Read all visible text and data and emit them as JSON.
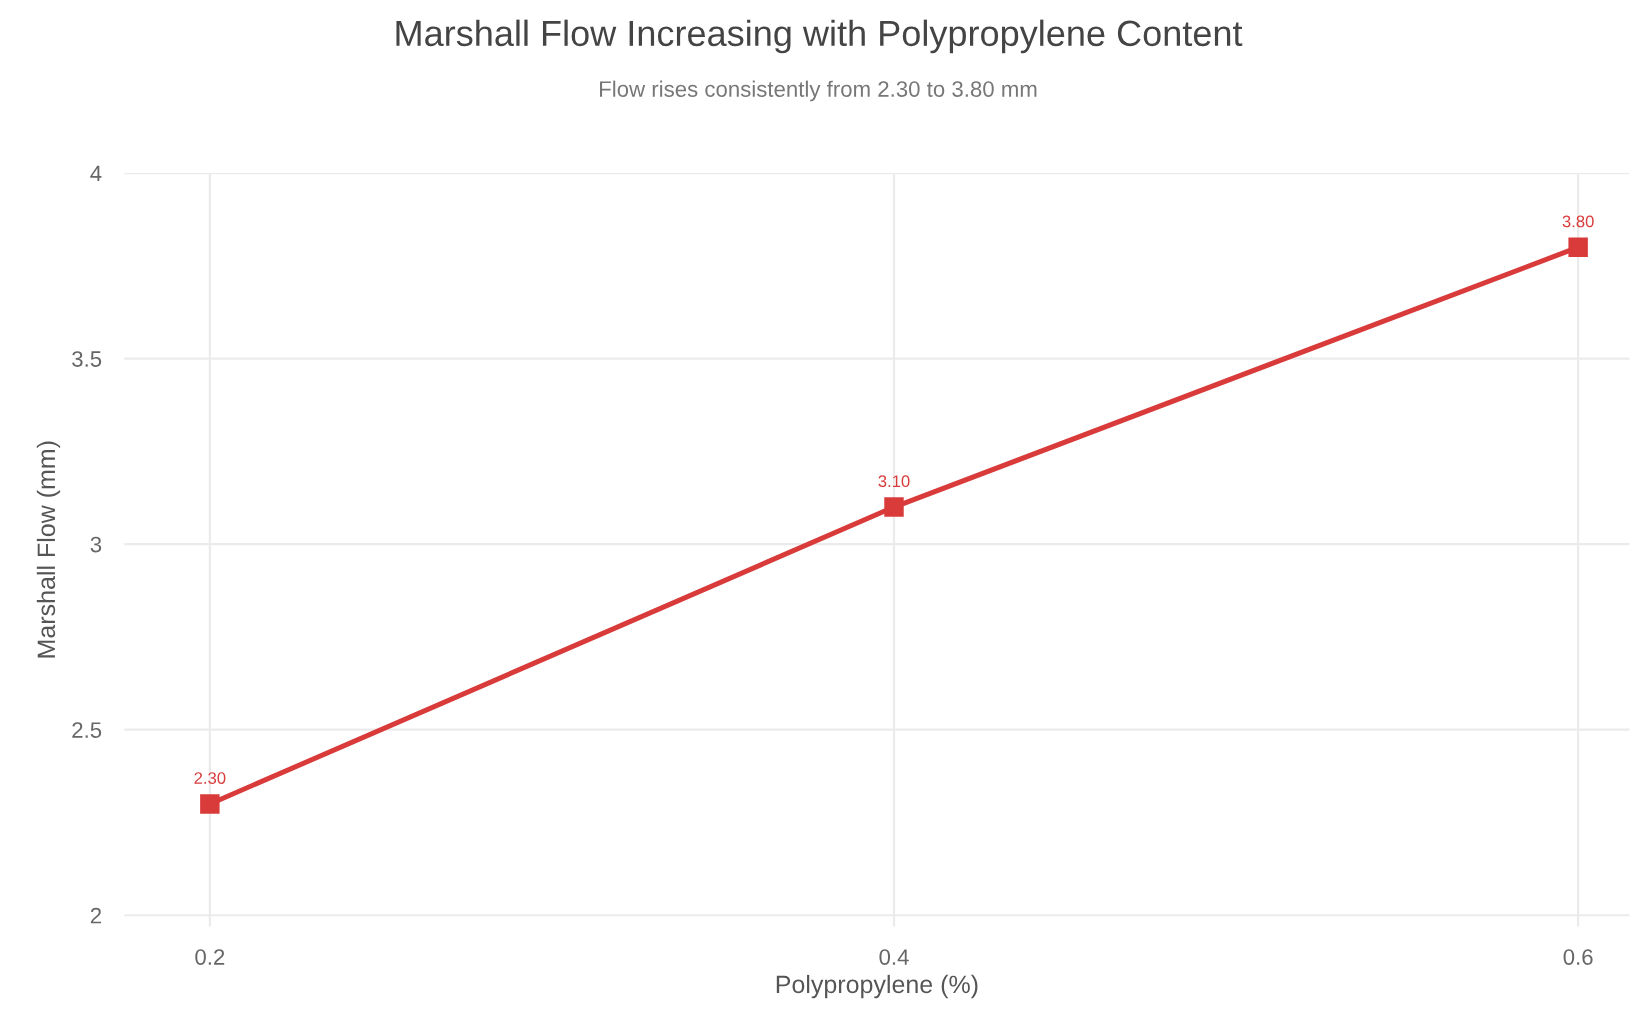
{
  "chart_data": {
    "type": "line",
    "title": "Marshall Flow Increasing with Polypropylene Content",
    "subtitle": "Flow rises consistently from 2.30 to 3.80 mm",
    "xlabel": "Polypropylene (%)",
    "ylabel": "Marshall Flow (mm)",
    "x": [
      0.2,
      0.4,
      0.6
    ],
    "series": [
      {
        "color": "#d93b3b",
        "values": [
          2.3,
          3.1,
          3.8
        ],
        "value_labels": [
          "2.30",
          "3.10",
          "3.80"
        ]
      }
    ],
    "xlim": [
      0.175,
      0.615
    ],
    "ylim": [
      1.97,
      4.0
    ],
    "xticks": [
      0.2,
      0.4,
      0.6
    ],
    "yticks": [
      2,
      2.5,
      3,
      3.5,
      4
    ],
    "grid": true,
    "marker": "square",
    "line_style": "solid",
    "legend": false
  }
}
